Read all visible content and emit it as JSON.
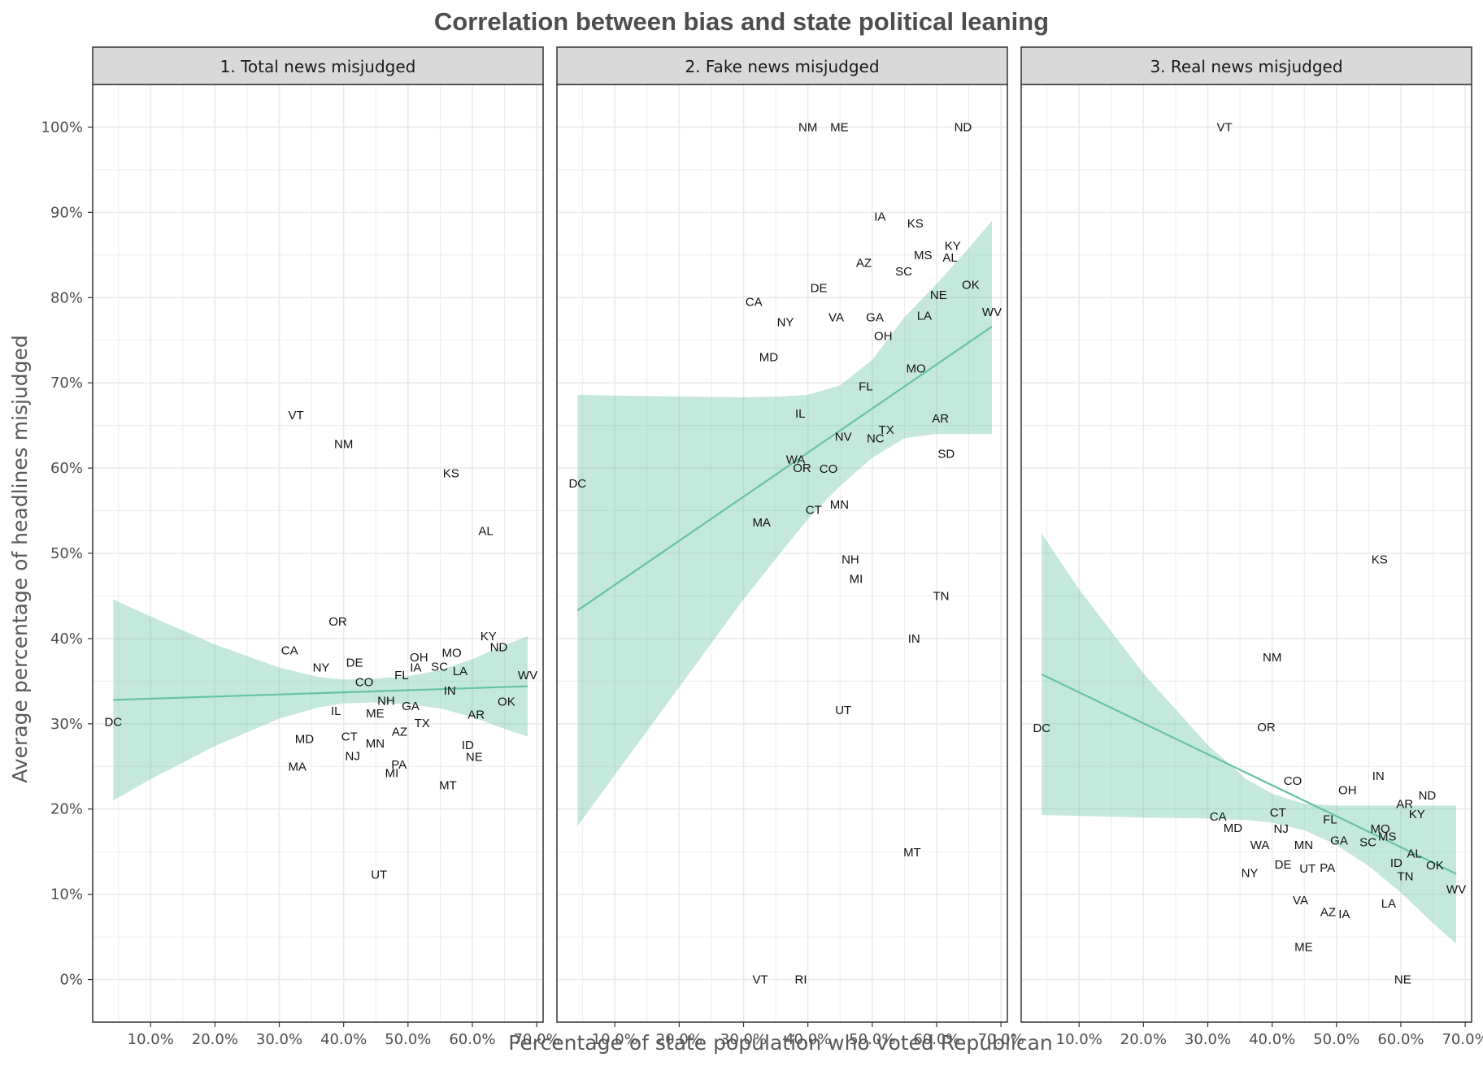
{
  "chart_data": {
    "type": "scatter",
    "title": "Correlation between bias and state political leaning",
    "xlabel": "Percentage of state population who voted Republican",
    "ylabel": "Average percentage of headlines misjudged",
    "xlim": [
      1,
      71
    ],
    "ylim": [
      -5,
      105
    ],
    "x_ticks": [
      10,
      20,
      30,
      40,
      50,
      60,
      70
    ],
    "x_tick_labels": [
      "10.0%",
      "20.0%",
      "30.0%",
      "40.0%",
      "50.0%",
      "60.0%",
      "70.0%"
    ],
    "y_ticks": [
      0,
      10,
      20,
      30,
      40,
      50,
      60,
      70,
      80,
      90,
      100
    ],
    "y_tick_labels": [
      "0%",
      "10%",
      "20%",
      "30%",
      "40%",
      "50%",
      "60%",
      "70%",
      "80%",
      "90%",
      "100%"
    ],
    "grid": true,
    "fit_color": "#66c2a5",
    "ribbon_color": "#66c2a5",
    "panels": [
      {
        "title": "1. Total news misjudged",
        "fit": {
          "x": [
            4.2,
            68.6
          ],
          "y": [
            32.8,
            34.4
          ]
        },
        "ribbon": {
          "x": [
            4.2,
            10,
            20,
            30,
            36,
            40,
            45,
            50,
            55,
            60,
            65,
            68.6
          ],
          "lo": [
            21.0,
            23.5,
            27.4,
            30.6,
            31.9,
            32.4,
            32.5,
            32.3,
            31.8,
            30.8,
            29.4,
            28.5
          ],
          "hi": [
            44.6,
            42.6,
            39.3,
            36.6,
            35.5,
            35.2,
            35.3,
            35.6,
            36.3,
            37.6,
            39.2,
            40.3
          ]
        },
        "points": [
          {
            "label": "DC",
            "x": 4.2,
            "y": 30.2
          },
          {
            "label": "VT",
            "x": 32.6,
            "y": 66.2
          },
          {
            "label": "NM",
            "x": 40.0,
            "y": 62.8
          },
          {
            "label": "KS",
            "x": 56.7,
            "y": 59.4
          },
          {
            "label": "AL",
            "x": 62.1,
            "y": 52.6
          },
          {
            "label": "OR",
            "x": 39.1,
            "y": 42.0
          },
          {
            "label": "KY",
            "x": 62.5,
            "y": 40.3
          },
          {
            "label": "ND",
            "x": 64.1,
            "y": 39.0
          },
          {
            "label": "MO",
            "x": 56.8,
            "y": 38.3
          },
          {
            "label": "CA",
            "x": 31.6,
            "y": 38.6
          },
          {
            "label": "OH",
            "x": 51.7,
            "y": 37.8
          },
          {
            "label": "DE",
            "x": 41.7,
            "y": 37.2
          },
          {
            "label": "NY",
            "x": 36.5,
            "y": 36.6
          },
          {
            "label": "IA",
            "x": 51.2,
            "y": 36.6
          },
          {
            "label": "SC",
            "x": 54.9,
            "y": 36.7
          },
          {
            "label": "LA",
            "x": 58.1,
            "y": 36.2
          },
          {
            "label": "WV",
            "x": 68.6,
            "y": 35.7
          },
          {
            "label": "FL",
            "x": 49.0,
            "y": 35.7
          },
          {
            "label": "CO",
            "x": 43.2,
            "y": 34.9
          },
          {
            "label": "IN",
            "x": 56.5,
            "y": 33.9
          },
          {
            "label": "NH",
            "x": 46.6,
            "y": 32.7
          },
          {
            "label": "OK",
            "x": 65.3,
            "y": 32.6
          },
          {
            "label": "GA",
            "x": 50.4,
            "y": 32.1
          },
          {
            "label": "IL",
            "x": 38.8,
            "y": 31.5
          },
          {
            "label": "ME",
            "x": 44.9,
            "y": 31.2
          },
          {
            "label": "AR",
            "x": 60.6,
            "y": 31.1
          },
          {
            "label": "TX",
            "x": 52.2,
            "y": 30.1
          },
          {
            "label": "AZ",
            "x": 48.7,
            "y": 29.1
          },
          {
            "label": "MD",
            "x": 33.9,
            "y": 28.2
          },
          {
            "label": "CT",
            "x": 40.9,
            "y": 28.5
          },
          {
            "label": "MN",
            "x": 44.9,
            "y": 27.7
          },
          {
            "label": "ID",
            "x": 59.3,
            "y": 27.5
          },
          {
            "label": "NJ",
            "x": 41.4,
            "y": 26.2
          },
          {
            "label": "NE",
            "x": 60.3,
            "y": 26.1
          },
          {
            "label": "PA",
            "x": 48.6,
            "y": 25.2
          },
          {
            "label": "MA",
            "x": 32.8,
            "y": 25.0
          },
          {
            "label": "MI",
            "x": 47.5,
            "y": 24.2
          },
          {
            "label": "MT",
            "x": 56.2,
            "y": 22.8
          },
          {
            "label": "UT",
            "x": 45.5,
            "y": 12.3
          }
        ]
      },
      {
        "title": "2. Fake news misjudged",
        "fit": {
          "x": [
            4.2,
            68.6
          ],
          "y": [
            43.3,
            76.6
          ]
        },
        "ribbon": {
          "x": [
            4.2,
            10,
            20,
            30,
            36,
            40,
            45,
            50,
            55,
            60,
            65,
            68.6
          ],
          "lo": [
            18.0,
            24.0,
            34.3,
            44.6,
            50.3,
            54.0,
            57.9,
            61.2,
            63.5,
            64.0,
            64.0,
            64.0
          ],
          "hi": [
            68.6,
            68.5,
            68.4,
            68.3,
            68.4,
            68.6,
            69.7,
            72.7,
            77.7,
            81.6,
            85.8,
            89.0
          ]
        },
        "points": [
          {
            "label": "NM",
            "x": 40.0,
            "y": 100.0
          },
          {
            "label": "ME",
            "x": 44.9,
            "y": 100.0
          },
          {
            "label": "ND",
            "x": 64.1,
            "y": 100.0
          },
          {
            "label": "IA",
            "x": 51.2,
            "y": 89.5
          },
          {
            "label": "KS",
            "x": 56.7,
            "y": 88.7
          },
          {
            "label": "KY",
            "x": 62.5,
            "y": 86.1
          },
          {
            "label": "MS",
            "x": 57.9,
            "y": 85.0
          },
          {
            "label": "AL",
            "x": 62.1,
            "y": 84.7
          },
          {
            "label": "AZ",
            "x": 48.7,
            "y": 84.1
          },
          {
            "label": "SC",
            "x": 54.9,
            "y": 83.1
          },
          {
            "label": "OK",
            "x": 65.3,
            "y": 81.5
          },
          {
            "label": "DE",
            "x": 41.7,
            "y": 81.1
          },
          {
            "label": "NE",
            "x": 60.3,
            "y": 80.3
          },
          {
            "label": "CA",
            "x": 31.6,
            "y": 79.5
          },
          {
            "label": "WV",
            "x": 68.6,
            "y": 78.3
          },
          {
            "label": "LA",
            "x": 58.1,
            "y": 77.9
          },
          {
            "label": "VA",
            "x": 44.4,
            "y": 77.7
          },
          {
            "label": "GA",
            "x": 50.4,
            "y": 77.7
          },
          {
            "label": "NY",
            "x": 36.5,
            "y": 77.1
          },
          {
            "label": "OH",
            "x": 51.7,
            "y": 75.5
          },
          {
            "label": "MD",
            "x": 33.9,
            "y": 73.0
          },
          {
            "label": "MO",
            "x": 56.8,
            "y": 71.7
          },
          {
            "label": "FL",
            "x": 49.0,
            "y": 69.6
          },
          {
            "label": "IL",
            "x": 38.8,
            "y": 66.4
          },
          {
            "label": "AR",
            "x": 60.6,
            "y": 65.8
          },
          {
            "label": "TX",
            "x": 52.2,
            "y": 64.5
          },
          {
            "label": "NV",
            "x": 45.5,
            "y": 63.7
          },
          {
            "label": "NC",
            "x": 50.5,
            "y": 63.5
          },
          {
            "label": "SD",
            "x": 61.5,
            "y": 61.7
          },
          {
            "label": "WA",
            "x": 38.1,
            "y": 61.0
          },
          {
            "label": "OR",
            "x": 39.1,
            "y": 60.0
          },
          {
            "label": "CO",
            "x": 43.2,
            "y": 59.9
          },
          {
            "label": "DC",
            "x": 4.2,
            "y": 58.2
          },
          {
            "label": "MN",
            "x": 44.9,
            "y": 55.7
          },
          {
            "label": "CT",
            "x": 40.9,
            "y": 55.1
          },
          {
            "label": "MA",
            "x": 32.8,
            "y": 53.6
          },
          {
            "label": "NH",
            "x": 46.6,
            "y": 49.3
          },
          {
            "label": "MI",
            "x": 47.5,
            "y": 47.0
          },
          {
            "label": "TN",
            "x": 60.7,
            "y": 45.0
          },
          {
            "label": "IN",
            "x": 56.5,
            "y": 40.0
          },
          {
            "label": "UT",
            "x": 45.5,
            "y": 31.6
          },
          {
            "label": "MT",
            "x": 56.2,
            "y": 14.9
          },
          {
            "label": "VT",
            "x": 32.6,
            "y": 0.0
          },
          {
            "label": "RI",
            "x": 38.9,
            "y": 0.0
          }
        ]
      },
      {
        "title": "3. Real news misjudged",
        "fit": {
          "x": [
            4.2,
            68.6
          ],
          "y": [
            35.8,
            12.4
          ]
        },
        "ribbon": {
          "x": [
            4.2,
            10,
            20,
            30,
            36,
            40,
            45,
            50,
            55,
            60,
            65,
            68.6
          ],
          "lo": [
            19.3,
            19.2,
            19.0,
            18.9,
            18.7,
            18.4,
            17.5,
            15.8,
            13.3,
            10.2,
            6.6,
            4.2
          ],
          "hi": [
            52.3,
            45.8,
            35.9,
            27.5,
            23.5,
            21.8,
            20.6,
            20.4,
            20.4,
            20.4,
            20.4,
            20.4
          ]
        },
        "points": [
          {
            "label": "VT",
            "x": 32.6,
            "y": 100.0
          },
          {
            "label": "KS",
            "x": 56.7,
            "y": 49.3
          },
          {
            "label": "NM",
            "x": 40.0,
            "y": 37.8
          },
          {
            "label": "DC",
            "x": 4.2,
            "y": 29.5
          },
          {
            "label": "OR",
            "x": 39.1,
            "y": 29.6
          },
          {
            "label": "IN",
            "x": 56.5,
            "y": 23.9
          },
          {
            "label": "ND",
            "x": 64.1,
            "y": 21.6
          },
          {
            "label": "CO",
            "x": 43.2,
            "y": 23.3
          },
          {
            "label": "OH",
            "x": 51.7,
            "y": 22.2
          },
          {
            "label": "AR",
            "x": 60.6,
            "y": 20.6
          },
          {
            "label": "CT",
            "x": 40.9,
            "y": 19.6
          },
          {
            "label": "KY",
            "x": 62.5,
            "y": 19.4
          },
          {
            "label": "CA",
            "x": 31.6,
            "y": 19.1
          },
          {
            "label": "FL",
            "x": 49.0,
            "y": 18.8
          },
          {
            "label": "MD",
            "x": 33.9,
            "y": 17.8
          },
          {
            "label": "NJ",
            "x": 41.4,
            "y": 17.7
          },
          {
            "label": "MO",
            "x": 56.8,
            "y": 17.7
          },
          {
            "label": "MS",
            "x": 57.9,
            "y": 16.8
          },
          {
            "label": "GA",
            "x": 50.4,
            "y": 16.3
          },
          {
            "label": "SC",
            "x": 54.9,
            "y": 16.1
          },
          {
            "label": "WA",
            "x": 38.1,
            "y": 15.8
          },
          {
            "label": "MN",
            "x": 44.9,
            "y": 15.8
          },
          {
            "label": "AL",
            "x": 62.1,
            "y": 14.8
          },
          {
            "label": "ID",
            "x": 59.3,
            "y": 13.7
          },
          {
            "label": "OK",
            "x": 65.3,
            "y": 13.4
          },
          {
            "label": "DE",
            "x": 41.7,
            "y": 13.5
          },
          {
            "label": "UT",
            "x": 45.5,
            "y": 13.0
          },
          {
            "label": "PA",
            "x": 48.6,
            "y": 13.1
          },
          {
            "label": "NY",
            "x": 36.5,
            "y": 12.5
          },
          {
            "label": "TN",
            "x": 60.7,
            "y": 12.1
          },
          {
            "label": "WV",
            "x": 68.6,
            "y": 10.6
          },
          {
            "label": "VA",
            "x": 44.4,
            "y": 9.3
          },
          {
            "label": "LA",
            "x": 58.1,
            "y": 8.9
          },
          {
            "label": "AZ",
            "x": 48.7,
            "y": 7.9
          },
          {
            "label": "IA",
            "x": 51.2,
            "y": 7.7
          },
          {
            "label": "ME",
            "x": 44.9,
            "y": 3.8
          },
          {
            "label": "NE",
            "x": 60.3,
            "y": 0.0
          }
        ]
      }
    ]
  }
}
